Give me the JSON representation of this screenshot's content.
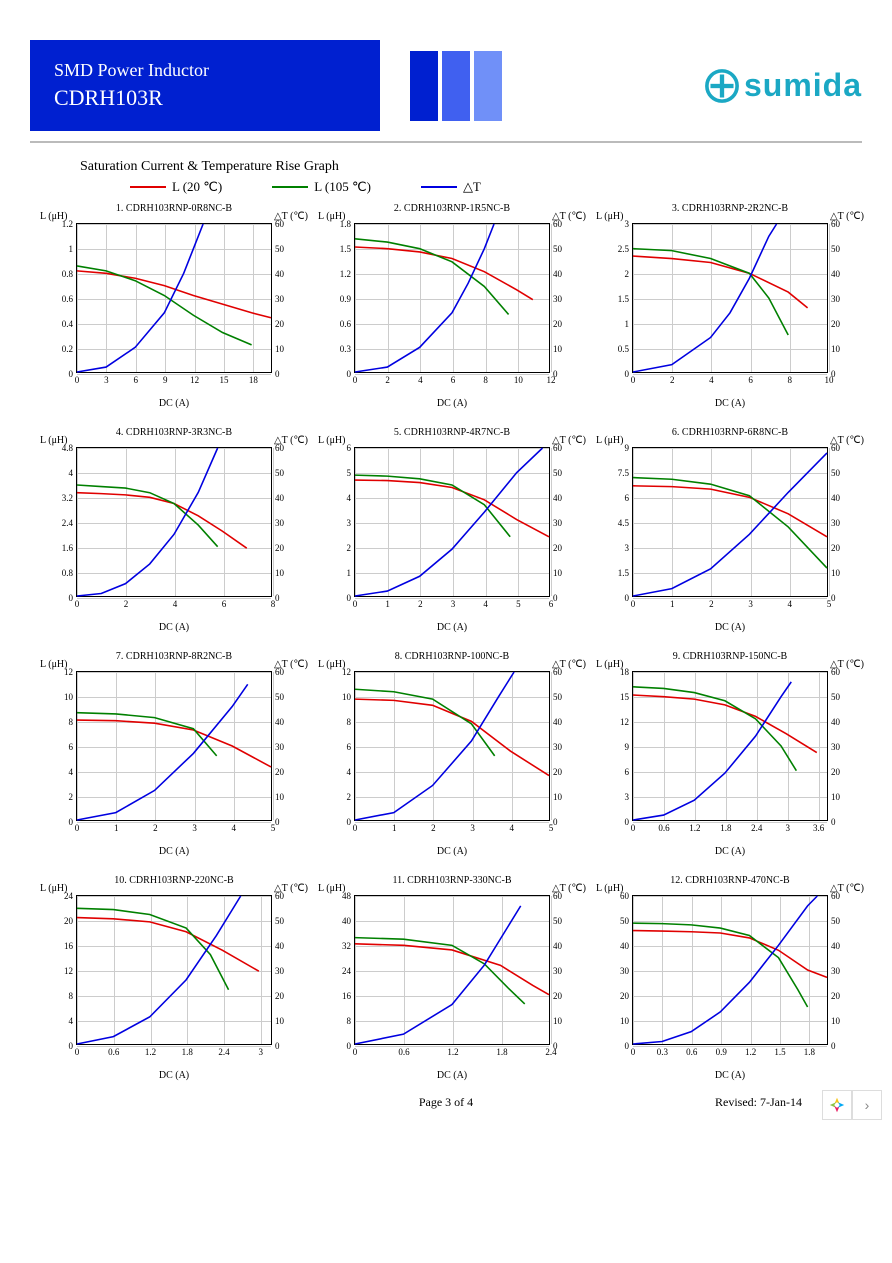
{
  "header": {
    "title_line1": "SMD Power Inductor",
    "title_line2": "CDRH103R",
    "bar_colors": [
      "#0020d0",
      "#4060f0",
      "#7090f8"
    ],
    "logo_text": "sumida",
    "logo_color": "#1ba8c4"
  },
  "section_title": "Saturation Current & Temperature Rise  Graph",
  "legend": [
    {
      "label": "L (20  ℃)",
      "color": "#e00000"
    },
    {
      "label": "L (105  ℃)",
      "color": "#008000"
    },
    {
      "label": "△T",
      "color": "#0000e0"
    }
  ],
  "axis_labels": {
    "yl": "L (μH)",
    "yr": "△T (℃)",
    "x": "DC (A)"
  },
  "colors": {
    "l20": "#e00000",
    "l105": "#008000",
    "dt": "#0000e0",
    "grid": "#cccccc"
  },
  "y_right_ticks": [
    0,
    10,
    20,
    30,
    40,
    50,
    60
  ],
  "charts": [
    {
      "title": "1. CDRH103RNP-0R8NC-B",
      "x_ticks": [
        0,
        3,
        6,
        9,
        12,
        15,
        18
      ],
      "x_max": 20,
      "yl_ticks": [
        0.0,
        0.2,
        0.4,
        0.6,
        0.8,
        1.0,
        1.2
      ],
      "yl_max": 1.2,
      "l20": [
        [
          0,
          0.82
        ],
        [
          3,
          0.8
        ],
        [
          6,
          0.76
        ],
        [
          9,
          0.7
        ],
        [
          12,
          0.62
        ],
        [
          15,
          0.55
        ],
        [
          18,
          0.48
        ],
        [
          20,
          0.44
        ]
      ],
      "l105": [
        [
          0,
          0.86
        ],
        [
          3,
          0.82
        ],
        [
          6,
          0.74
        ],
        [
          9,
          0.62
        ],
        [
          12,
          0.46
        ],
        [
          15,
          0.32
        ],
        [
          18,
          0.22
        ]
      ],
      "dt": [
        [
          0,
          0
        ],
        [
          3,
          2
        ],
        [
          6,
          10
        ],
        [
          9,
          24
        ],
        [
          11,
          40
        ],
        [
          12,
          50
        ],
        [
          13,
          60
        ]
      ]
    },
    {
      "title": "2. CDRH103RNP-1R5NC-B",
      "x_ticks": [
        0,
        2,
        4,
        6,
        8,
        10,
        12
      ],
      "x_max": 12,
      "yl_ticks": [
        0.0,
        0.3,
        0.6,
        0.9,
        1.2,
        1.5,
        1.8
      ],
      "yl_max": 1.8,
      "l20": [
        [
          0,
          1.52
        ],
        [
          2,
          1.5
        ],
        [
          4,
          1.46
        ],
        [
          6,
          1.38
        ],
        [
          8,
          1.22
        ],
        [
          10,
          1.0
        ],
        [
          11,
          0.88
        ]
      ],
      "l105": [
        [
          0,
          1.62
        ],
        [
          2,
          1.58
        ],
        [
          4,
          1.5
        ],
        [
          6,
          1.34
        ],
        [
          8,
          1.04
        ],
        [
          9.5,
          0.7
        ]
      ],
      "dt": [
        [
          0,
          0
        ],
        [
          2,
          2
        ],
        [
          4,
          10
        ],
        [
          6,
          24
        ],
        [
          7,
          36
        ],
        [
          8,
          50
        ],
        [
          8.6,
          60
        ]
      ]
    },
    {
      "title": "3. CDRH103RNP-2R2NC-B",
      "x_ticks": [
        0,
        2,
        4,
        6,
        8,
        10
      ],
      "x_max": 10,
      "yl_ticks": [
        0.0,
        0.5,
        1.0,
        1.5,
        2.0,
        2.5,
        3.0
      ],
      "yl_max": 3.0,
      "l20": [
        [
          0,
          2.35
        ],
        [
          2,
          2.3
        ],
        [
          4,
          2.22
        ],
        [
          6,
          2.0
        ],
        [
          8,
          1.62
        ],
        [
          9,
          1.3
        ]
      ],
      "l105": [
        [
          0,
          2.5
        ],
        [
          2,
          2.46
        ],
        [
          4,
          2.3
        ],
        [
          6,
          2.0
        ],
        [
          7,
          1.5
        ],
        [
          8,
          0.75
        ]
      ],
      "dt": [
        [
          0,
          0
        ],
        [
          2,
          3
        ],
        [
          4,
          14
        ],
        [
          5,
          24
        ],
        [
          6,
          38
        ],
        [
          7,
          55
        ],
        [
          7.4,
          60
        ]
      ]
    },
    {
      "title": "4. CDRH103RNP-3R3NC-B",
      "x_ticks": [
        0,
        2,
        4,
        6,
        8
      ],
      "x_max": 8,
      "yl_ticks": [
        0.0,
        0.8,
        1.6,
        2.4,
        3.2,
        4.0,
        4.8
      ],
      "yl_max": 4.8,
      "l20": [
        [
          0,
          3.35
        ],
        [
          1,
          3.32
        ],
        [
          2,
          3.28
        ],
        [
          3,
          3.2
        ],
        [
          4,
          3.0
        ],
        [
          5,
          2.6
        ],
        [
          6,
          2.1
        ],
        [
          7,
          1.55
        ]
      ],
      "l105": [
        [
          0,
          3.6
        ],
        [
          1,
          3.55
        ],
        [
          2,
          3.5
        ],
        [
          3,
          3.35
        ],
        [
          4,
          3.0
        ],
        [
          5,
          2.3
        ],
        [
          5.8,
          1.6
        ]
      ],
      "dt": [
        [
          0,
          0
        ],
        [
          1,
          1
        ],
        [
          2,
          5
        ],
        [
          3,
          13
        ],
        [
          4,
          25
        ],
        [
          5,
          42
        ],
        [
          5.8,
          60
        ]
      ]
    },
    {
      "title": "5. CDRH103RNP-4R7NC-B",
      "x_ticks": [
        0,
        1,
        2,
        3,
        4,
        5,
        6
      ],
      "x_max": 6,
      "yl_ticks": [
        0,
        1,
        2,
        3,
        4,
        5,
        6
      ],
      "yl_max": 6,
      "l20": [
        [
          0,
          4.7
        ],
        [
          1,
          4.68
        ],
        [
          2,
          4.6
        ],
        [
          3,
          4.4
        ],
        [
          4,
          3.9
        ],
        [
          5,
          3.1
        ],
        [
          6,
          2.4
        ]
      ],
      "l105": [
        [
          0,
          4.9
        ],
        [
          1,
          4.86
        ],
        [
          2,
          4.75
        ],
        [
          3,
          4.5
        ],
        [
          4,
          3.7
        ],
        [
          4.8,
          2.4
        ]
      ],
      "dt": [
        [
          0,
          0
        ],
        [
          1,
          2
        ],
        [
          2,
          8
        ],
        [
          3,
          19
        ],
        [
          4,
          34
        ],
        [
          5,
          50
        ],
        [
          5.8,
          60
        ]
      ]
    },
    {
      "title": "6. CDRH103RNP-6R8NC-B",
      "x_ticks": [
        0,
        1,
        2,
        3,
        4,
        5
      ],
      "x_max": 5,
      "yl_ticks": [
        0.0,
        1.5,
        3.0,
        4.5,
        6.0,
        7.5,
        9.0
      ],
      "yl_max": 9.0,
      "l20": [
        [
          0,
          6.7
        ],
        [
          1,
          6.65
        ],
        [
          2,
          6.5
        ],
        [
          3,
          6.0
        ],
        [
          4,
          5.0
        ],
        [
          5,
          3.6
        ]
      ],
      "l105": [
        [
          0,
          7.2
        ],
        [
          1,
          7.1
        ],
        [
          2,
          6.8
        ],
        [
          3,
          6.1
        ],
        [
          4,
          4.2
        ],
        [
          5,
          1.7
        ]
      ],
      "dt": [
        [
          0,
          0
        ],
        [
          1,
          3
        ],
        [
          2,
          11
        ],
        [
          3,
          25
        ],
        [
          4,
          42
        ],
        [
          5,
          58
        ]
      ]
    },
    {
      "title": "7. CDRH103RNP-8R2NC-B",
      "x_ticks": [
        0,
        1,
        2,
        3,
        4,
        5
      ],
      "x_max": 5,
      "yl_ticks": [
        0,
        2,
        4,
        6,
        8,
        10,
        12
      ],
      "yl_max": 12,
      "l20": [
        [
          0,
          8.1
        ],
        [
          1,
          8.05
        ],
        [
          2,
          7.85
        ],
        [
          3,
          7.3
        ],
        [
          4,
          6.0
        ],
        [
          5,
          4.3
        ]
      ],
      "l105": [
        [
          0,
          8.7
        ],
        [
          1,
          8.6
        ],
        [
          2,
          8.3
        ],
        [
          3,
          7.4
        ],
        [
          3.6,
          5.2
        ]
      ],
      "dt": [
        [
          0,
          0
        ],
        [
          1,
          3
        ],
        [
          2,
          12
        ],
        [
          3,
          27
        ],
        [
          4,
          46
        ],
        [
          4.4,
          55
        ]
      ]
    },
    {
      "title": "8. CDRH103RNP-100NC-B",
      "x_ticks": [
        0,
        1,
        2,
        3,
        4,
        5
      ],
      "x_max": 5,
      "yl_ticks": [
        0,
        2,
        4,
        6,
        8,
        10,
        12
      ],
      "yl_max": 12,
      "l20": [
        [
          0,
          9.8
        ],
        [
          1,
          9.7
        ],
        [
          2,
          9.3
        ],
        [
          3,
          8.0
        ],
        [
          4,
          5.6
        ],
        [
          5,
          3.6
        ]
      ],
      "l105": [
        [
          0,
          10.6
        ],
        [
          1,
          10.4
        ],
        [
          2,
          9.8
        ],
        [
          3,
          7.8
        ],
        [
          3.6,
          5.2
        ]
      ],
      "dt": [
        [
          0,
          0
        ],
        [
          1,
          3
        ],
        [
          2,
          14
        ],
        [
          3,
          32
        ],
        [
          3.7,
          50
        ],
        [
          4.1,
          60
        ]
      ]
    },
    {
      "title": "9. CDRH103RNP-150NC-B",
      "x_ticks": [
        0.0,
        0.6,
        1.2,
        1.8,
        2.4,
        3.0,
        3.6
      ],
      "x_max": 3.8,
      "yl_ticks": [
        0,
        3,
        6,
        9,
        12,
        15,
        18
      ],
      "yl_max": 18,
      "l20": [
        [
          0,
          15.2
        ],
        [
          0.6,
          15
        ],
        [
          1.2,
          14.7
        ],
        [
          1.8,
          14
        ],
        [
          2.4,
          12.6
        ],
        [
          3.0,
          10.5
        ],
        [
          3.6,
          8.2
        ]
      ],
      "l105": [
        [
          0,
          16.2
        ],
        [
          0.6,
          16
        ],
        [
          1.2,
          15.5
        ],
        [
          1.8,
          14.5
        ],
        [
          2.4,
          12.3
        ],
        [
          2.9,
          9.0
        ],
        [
          3.2,
          6.0
        ]
      ],
      "dt": [
        [
          0,
          0
        ],
        [
          0.6,
          2
        ],
        [
          1.2,
          8
        ],
        [
          1.8,
          19
        ],
        [
          2.4,
          34
        ],
        [
          2.9,
          50
        ],
        [
          3.1,
          56
        ]
      ]
    },
    {
      "title": "10. CDRH103RNP-220NC-B",
      "x_ticks": [
        0.0,
        0.6,
        1.2,
        1.8,
        2.4,
        3.0
      ],
      "x_max": 3.2,
      "yl_ticks": [
        0,
        4,
        8,
        12,
        16,
        20,
        24
      ],
      "yl_max": 24,
      "l20": [
        [
          0,
          20.5
        ],
        [
          0.6,
          20.3
        ],
        [
          1.2,
          19.8
        ],
        [
          1.8,
          18.2
        ],
        [
          2.4,
          15.2
        ],
        [
          3.0,
          11.8
        ]
      ],
      "l105": [
        [
          0,
          22.0
        ],
        [
          0.6,
          21.8
        ],
        [
          1.2,
          21.0
        ],
        [
          1.8,
          18.8
        ],
        [
          2.2,
          14.5
        ],
        [
          2.5,
          8.8
        ]
      ],
      "dt": [
        [
          0,
          0
        ],
        [
          0.6,
          3
        ],
        [
          1.2,
          11
        ],
        [
          1.8,
          26
        ],
        [
          2.3,
          44
        ],
        [
          2.7,
          60
        ]
      ]
    },
    {
      "title": "11. CDRH103RNP-330NC-B",
      "x_ticks": [
        0.0,
        0.6,
        1.2,
        1.8,
        2.4
      ],
      "x_max": 2.4,
      "yl_ticks": [
        0,
        8,
        16,
        24,
        32,
        40,
        48
      ],
      "yl_max": 48,
      "l20": [
        [
          0,
          32.5
        ],
        [
          0.6,
          32
        ],
        [
          1.2,
          30.5
        ],
        [
          1.8,
          25.5
        ],
        [
          2.2,
          19
        ],
        [
          2.4,
          16
        ]
      ],
      "l105": [
        [
          0,
          34.5
        ],
        [
          0.6,
          34
        ],
        [
          1.2,
          32
        ],
        [
          1.6,
          26
        ],
        [
          1.9,
          18
        ],
        [
          2.1,
          13
        ]
      ],
      "dt": [
        [
          0,
          0
        ],
        [
          0.6,
          4
        ],
        [
          1.2,
          16
        ],
        [
          1.6,
          32
        ],
        [
          1.9,
          48
        ],
        [
          2.05,
          56
        ]
      ]
    },
    {
      "title": "12. CDRH103RNP-470NC-B",
      "x_ticks": [
        0.0,
        0.3,
        0.6,
        0.9,
        1.2,
        1.5,
        1.8
      ],
      "x_max": 2.0,
      "yl_ticks": [
        0,
        10,
        20,
        30,
        40,
        50,
        60
      ],
      "yl_max": 60,
      "l20": [
        [
          0,
          46
        ],
        [
          0.3,
          45.8
        ],
        [
          0.6,
          45.5
        ],
        [
          0.9,
          45
        ],
        [
          1.2,
          43
        ],
        [
          1.5,
          38
        ],
        [
          1.8,
          30
        ],
        [
          2.0,
          27
        ]
      ],
      "l105": [
        [
          0,
          49
        ],
        [
          0.3,
          48.8
        ],
        [
          0.6,
          48.3
        ],
        [
          0.9,
          47
        ],
        [
          1.2,
          44
        ],
        [
          1.5,
          35
        ],
        [
          1.7,
          22
        ],
        [
          1.8,
          15
        ]
      ],
      "dt": [
        [
          0,
          0
        ],
        [
          0.3,
          1
        ],
        [
          0.6,
          5
        ],
        [
          0.9,
          13
        ],
        [
          1.2,
          25
        ],
        [
          1.5,
          40
        ],
        [
          1.8,
          56
        ],
        [
          1.9,
          60
        ]
      ]
    }
  ],
  "footer": {
    "page": "Page 3 of 4",
    "revised": "Revised: 7-Jan-14"
  }
}
